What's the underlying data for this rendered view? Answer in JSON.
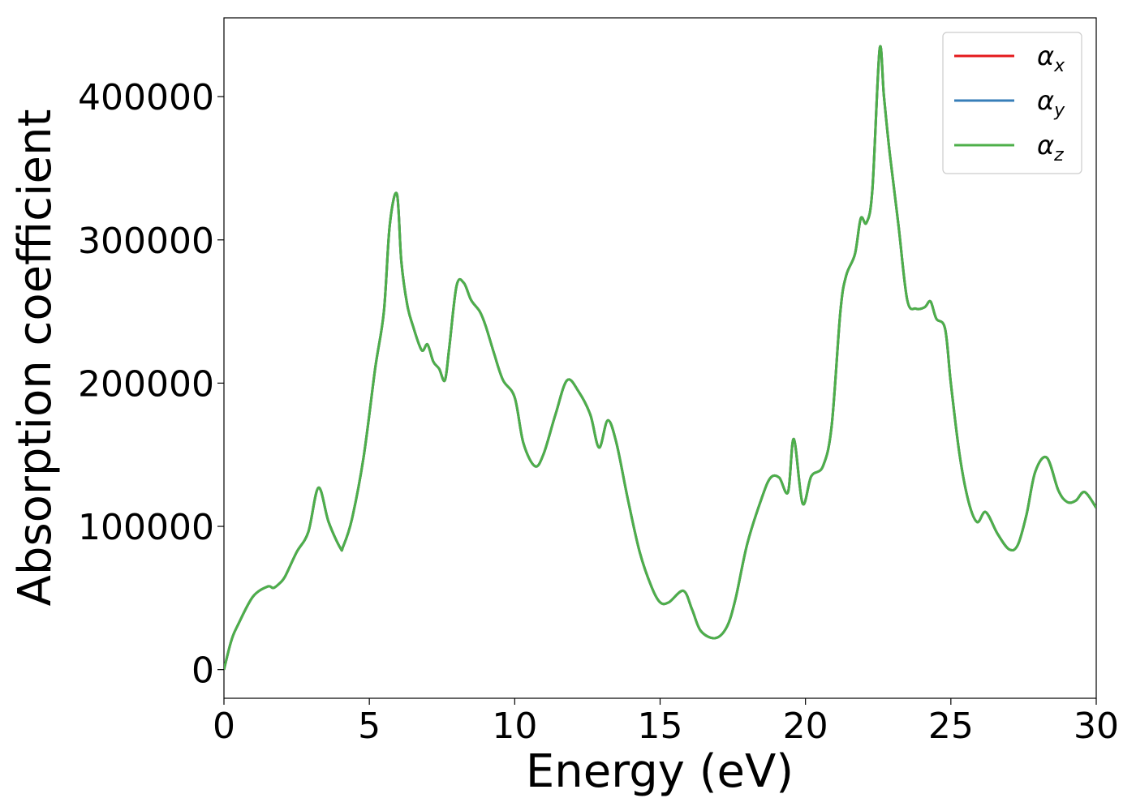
{
  "chart_data": {
    "type": "line",
    "title": "",
    "xlabel": "Energy (eV)",
    "ylabel": "Absorption coefficient",
    "xlim": [
      0,
      30
    ],
    "ylim": [
      -20000,
      455000
    ],
    "xticks": [
      0,
      5,
      10,
      15,
      20,
      25,
      30
    ],
    "xtick_labels": [
      "0",
      "5",
      "10",
      "15",
      "20",
      "25",
      "30"
    ],
    "yticks": [
      0,
      100000,
      200000,
      300000,
      400000
    ],
    "ytick_labels": [
      "0",
      "100000",
      "200000",
      "300000",
      "400000"
    ],
    "grid": false,
    "legend_position": "top-right",
    "x": [
      0,
      0.25,
      0.5,
      1.0,
      1.5,
      1.7,
      1.9,
      2.1,
      2.5,
      2.9,
      3.25,
      3.6,
      4.0,
      4.1,
      4.4,
      4.8,
      5.2,
      5.5,
      5.7,
      5.95,
      6.1,
      6.3,
      6.5,
      6.8,
      7.0,
      7.2,
      7.4,
      7.6,
      7.75,
      8.0,
      8.25,
      8.5,
      8.8,
      9.0,
      9.3,
      9.6,
      10.0,
      10.3,
      10.7,
      11.0,
      11.4,
      11.8,
      12.2,
      12.6,
      12.9,
      13.2,
      13.5,
      13.9,
      14.3,
      14.7,
      15.0,
      15.3,
      15.8,
      16.1,
      16.4,
      16.9,
      17.3,
      17.6,
      18.0,
      18.5,
      18.8,
      19.1,
      19.4,
      19.6,
      19.9,
      20.2,
      20.6,
      20.9,
      21.2,
      21.4,
      21.7,
      21.9,
      22.1,
      22.3,
      22.55,
      22.7,
      22.9,
      23.2,
      23.5,
      23.8,
      24.1,
      24.3,
      24.5,
      24.8,
      25.0,
      25.3,
      25.6,
      25.9,
      26.2,
      26.6,
      27.0,
      27.3,
      27.6,
      27.9,
      28.3,
      28.7,
      29.0,
      29.3,
      29.6,
      30.0
    ],
    "series": [
      {
        "name": "α",
        "subscript": "x",
        "color": "#e41a1c",
        "values": [
          0,
          20000,
          32000,
          51000,
          58000,
          57000,
          60000,
          65000,
          82000,
          96000,
          127000,
          103000,
          85000,
          86000,
          105000,
          148000,
          210000,
          250000,
          310000,
          332000,
          285000,
          255000,
          240000,
          223000,
          227000,
          215000,
          210000,
          202000,
          225000,
          268000,
          270000,
          258000,
          250000,
          240000,
          220000,
          202000,
          190000,
          158000,
          142000,
          151000,
          178000,
          202000,
          194000,
          178000,
          155000,
          174000,
          158000,
          118000,
          82000,
          58000,
          47000,
          47000,
          55000,
          42000,
          27000,
          22000,
          30000,
          50000,
          88000,
          120000,
          134000,
          134000,
          124000,
          161000,
          116000,
          135000,
          142000,
          170000,
          250000,
          275000,
          290000,
          315000,
          312000,
          335000,
          433000,
          400000,
          360000,
          310000,
          258000,
          252000,
          253000,
          257000,
          245000,
          238000,
          200000,
          150000,
          118000,
          103000,
          110000,
          95000,
          84000,
          87000,
          108000,
          138000,
          148000,
          125000,
          117000,
          118000,
          124000,
          113000
        ]
      },
      {
        "name": "α",
        "subscript": "y",
        "color": "#377eb8",
        "values": [
          0,
          20000,
          32000,
          51000,
          58000,
          57000,
          60000,
          65000,
          82000,
          96000,
          127000,
          103000,
          85000,
          86000,
          105000,
          148000,
          210000,
          250000,
          310000,
          332000,
          285000,
          255000,
          240000,
          223000,
          227000,
          215000,
          210000,
          202000,
          225000,
          268000,
          270000,
          258000,
          250000,
          240000,
          220000,
          202000,
          190000,
          158000,
          142000,
          151000,
          178000,
          202000,
          194000,
          178000,
          155000,
          174000,
          158000,
          118000,
          82000,
          58000,
          47000,
          47000,
          55000,
          42000,
          27000,
          22000,
          30000,
          50000,
          88000,
          120000,
          134000,
          134000,
          124000,
          161000,
          116000,
          135000,
          142000,
          170000,
          250000,
          275000,
          290000,
          315000,
          312000,
          335000,
          433000,
          400000,
          360000,
          310000,
          258000,
          252000,
          253000,
          257000,
          245000,
          238000,
          200000,
          150000,
          118000,
          103000,
          110000,
          95000,
          84000,
          87000,
          108000,
          138000,
          148000,
          125000,
          117000,
          118000,
          124000,
          113000
        ]
      },
      {
        "name": "α",
        "subscript": "z",
        "color": "#4daf4a",
        "values": [
          0,
          20000,
          32000,
          51000,
          58000,
          57000,
          60000,
          65000,
          82000,
          96000,
          127000,
          103000,
          85000,
          86000,
          105000,
          148000,
          210000,
          250000,
          310000,
          332000,
          285000,
          255000,
          240000,
          223000,
          227000,
          215000,
          210000,
          202000,
          225000,
          268000,
          270000,
          258000,
          250000,
          240000,
          220000,
          202000,
          190000,
          158000,
          142000,
          151000,
          178000,
          202000,
          194000,
          178000,
          155000,
          174000,
          158000,
          118000,
          82000,
          58000,
          47000,
          47000,
          55000,
          42000,
          27000,
          22000,
          30000,
          50000,
          88000,
          120000,
          134000,
          134000,
          124000,
          161000,
          116000,
          135000,
          142000,
          170000,
          250000,
          275000,
          290000,
          315000,
          312000,
          335000,
          433000,
          400000,
          360000,
          310000,
          258000,
          252000,
          253000,
          257000,
          245000,
          238000,
          200000,
          150000,
          118000,
          103000,
          110000,
          95000,
          84000,
          87000,
          108000,
          138000,
          148000,
          125000,
          117000,
          118000,
          124000,
          113000
        ]
      }
    ]
  }
}
